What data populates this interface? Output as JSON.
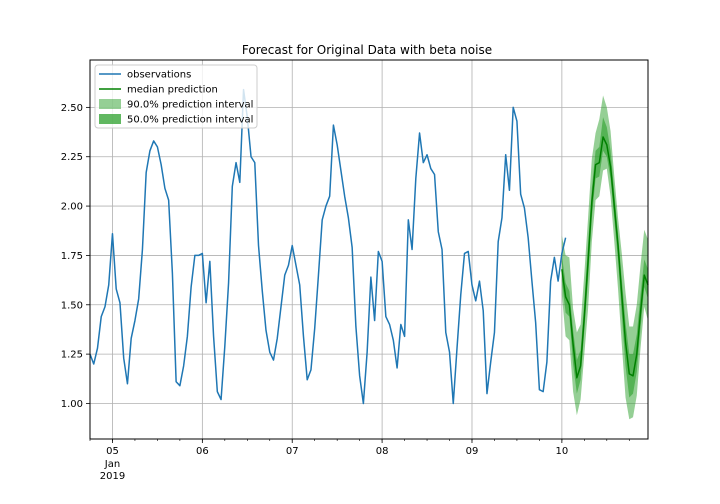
{
  "chart_data": {
    "type": "line",
    "title": "Forecast for Original Data with beta noise",
    "xlabel": "",
    "ylabel": "",
    "grid": true,
    "legend_position": "top-left",
    "xlim": [
      "2019-01-04T18:00",
      "2019-01-10T23:00"
    ],
    "ylim": [
      0.82,
      2.74
    ],
    "x_ticks": [
      {
        "x": "2019-01-05T00:00",
        "label": "05",
        "sublabel": "Jan\n2019"
      },
      {
        "x": "2019-01-06T00:00",
        "label": "06"
      },
      {
        "x": "2019-01-07T00:00",
        "label": "07"
      },
      {
        "x": "2019-01-08T00:00",
        "label": "08"
      },
      {
        "x": "2019-01-09T00:00",
        "label": "09"
      },
      {
        "x": "2019-01-10T00:00",
        "label": "10"
      }
    ],
    "y_ticks": [
      1.0,
      1.25,
      1.5,
      1.75,
      2.0,
      2.25,
      2.5
    ],
    "y_tick_labels": [
      "1.00",
      "1.25",
      "1.50",
      "1.75",
      "2.00",
      "2.25",
      "2.50"
    ],
    "observations": {
      "name": "observations",
      "color": "#1f77b4",
      "start": "2019-01-04T18:00",
      "step_hours": 1,
      "y": [
        1.25,
        1.2,
        1.28,
        1.44,
        1.49,
        1.6,
        1.86,
        1.58,
        1.51,
        1.23,
        1.1,
        1.33,
        1.42,
        1.53,
        1.78,
        2.17,
        2.28,
        2.33,
        2.3,
        2.21,
        2.09,
        2.03,
        1.66,
        1.11,
        1.09,
        1.19,
        1.34,
        1.59,
        1.75,
        1.75,
        1.76,
        1.51,
        1.72,
        1.34,
        1.06,
        1.02,
        1.29,
        1.61,
        2.1,
        2.22,
        2.12,
        2.59,
        2.45,
        2.25,
        2.22,
        1.8,
        1.57,
        1.37,
        1.26,
        1.22,
        1.33,
        1.49,
        1.65,
        1.7,
        1.8,
        1.7,
        1.6,
        1.34,
        1.12,
        1.17,
        1.38,
        1.65,
        1.93,
        2.0,
        2.05,
        2.41,
        2.31,
        2.18,
        2.05,
        1.94,
        1.79,
        1.39,
        1.14,
        1.0,
        1.26,
        1.64,
        1.42,
        1.77,
        1.72,
        1.44,
        1.4,
        1.32,
        1.18,
        1.4,
        1.34,
        1.93,
        1.78,
        2.14,
        2.37,
        2.22,
        2.26,
        2.19,
        2.16,
        1.87,
        1.78,
        1.36,
        1.26,
        1.0,
        1.28,
        1.55,
        1.76,
        1.77,
        1.6,
        1.52,
        1.62,
        1.47,
        1.05,
        1.21,
        1.36,
        1.82,
        1.94,
        2.26,
        2.08,
        2.5,
        2.43,
        2.06,
        1.99,
        1.84,
        1.62,
        1.41,
        1.07,
        1.06,
        1.21,
        1.62,
        1.74,
        1.62,
        1.76,
        1.84
      ]
    },
    "forecast": {
      "start": "2019-01-10T00:00",
      "step_hours": 1,
      "median": {
        "name": "median prediction",
        "color": "#008000",
        "y": [
          1.68,
          1.54,
          1.5,
          1.3,
          1.13,
          1.19,
          1.44,
          1.72,
          2.02,
          2.21,
          2.22,
          2.35,
          2.31,
          2.2,
          2.0,
          1.8,
          1.55,
          1.31,
          1.15,
          1.14,
          1.25,
          1.46,
          1.65,
          1.6
        ]
      },
      "interval_90": {
        "name": "90.0% prediction interval",
        "color": "#2ca02c",
        "lower": [
          1.55,
          1.34,
          1.32,
          1.06,
          0.94,
          1.02,
          1.25,
          1.48,
          1.82,
          2.03,
          2.05,
          2.18,
          2.19,
          2.05,
          1.82,
          1.58,
          1.3,
          1.03,
          0.92,
          0.93,
          1.04,
          1.28,
          1.49,
          1.42
        ],
        "upper": [
          1.85,
          1.75,
          1.74,
          1.48,
          1.36,
          1.4,
          1.66,
          1.94,
          2.24,
          2.37,
          2.44,
          2.56,
          2.5,
          2.38,
          2.15,
          1.94,
          1.76,
          1.56,
          1.39,
          1.39,
          1.5,
          1.7,
          1.88,
          1.83
        ]
      },
      "interval_50": {
        "name": "50.0% prediction interval",
        "color": "#2ca02c",
        "lower": [
          1.62,
          1.46,
          1.44,
          1.2,
          1.05,
          1.12,
          1.37,
          1.63,
          1.94,
          2.14,
          2.15,
          2.28,
          2.25,
          2.14,
          1.93,
          1.73,
          1.45,
          1.19,
          1.03,
          1.05,
          1.16,
          1.38,
          1.59,
          1.53
        ],
        "upper": [
          1.75,
          1.61,
          1.57,
          1.37,
          1.22,
          1.27,
          1.52,
          1.81,
          2.09,
          2.28,
          2.3,
          2.45,
          2.4,
          2.28,
          2.07,
          1.86,
          1.63,
          1.41,
          1.25,
          1.25,
          1.35,
          1.55,
          1.73,
          1.68
        ]
      }
    },
    "legend": [
      "observations",
      "median prediction",
      "90.0% prediction interval",
      "50.0% prediction interval"
    ]
  }
}
